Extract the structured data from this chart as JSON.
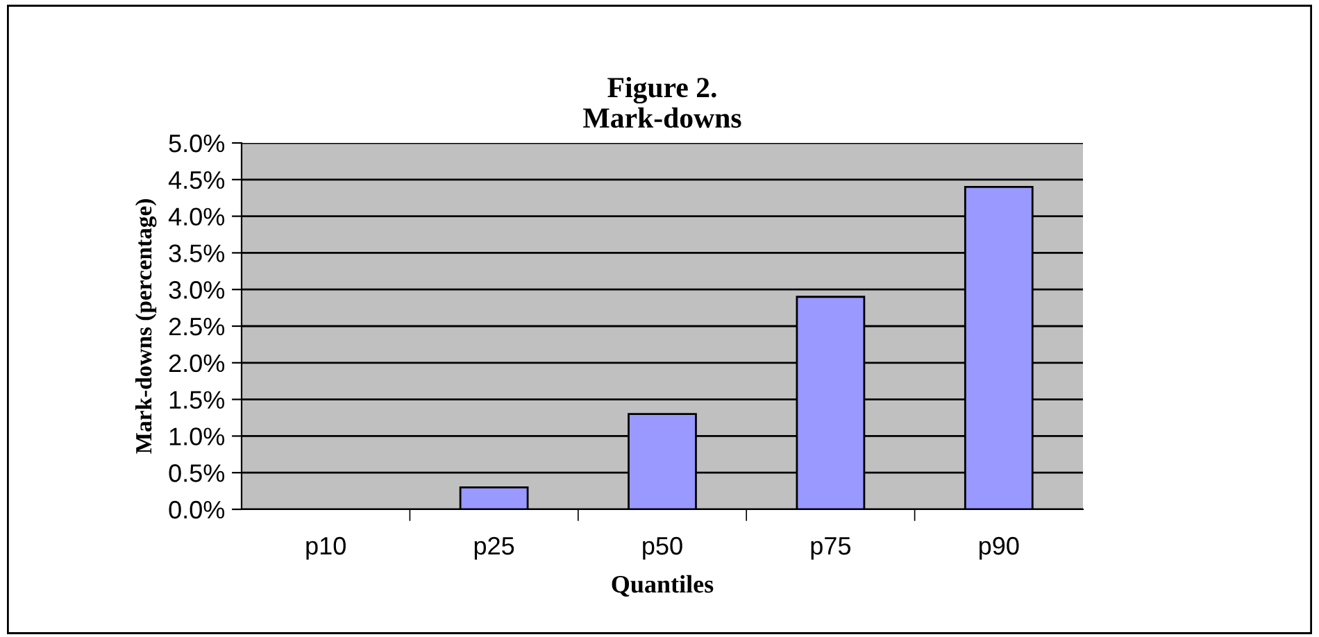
{
  "chart_data": {
    "type": "bar",
    "title": "Figure 2.\nMark-downs",
    "xlabel": "Quantiles",
    "ylabel": "Mark-downs (percentage)",
    "categories": [
      "p10",
      "p25",
      "p50",
      "p75",
      "p90"
    ],
    "values": [
      0,
      0.3,
      1.3,
      2.9,
      4.4
    ],
    "color": "#9999ff",
    "ylim": [
      0,
      5
    ],
    "yticks": [
      {
        "value": 0,
        "label": "0.0%"
      },
      {
        "value": 0.5,
        "label": "0.5%"
      },
      {
        "value": 1,
        "label": "1.0%"
      },
      {
        "value": 1.5,
        "label": "1.5%"
      },
      {
        "value": 2,
        "label": "2.0%"
      },
      {
        "value": 2.5,
        "label": "2.5%"
      },
      {
        "value": 3,
        "label": "3.0%"
      },
      {
        "value": 3.5,
        "label": "3.5%"
      },
      {
        "value": 4,
        "label": "4.0%"
      },
      {
        "value": 4.5,
        "label": "4.5%"
      },
      {
        "value": 5,
        "label": "5.0%"
      }
    ],
    "grid": "y"
  }
}
